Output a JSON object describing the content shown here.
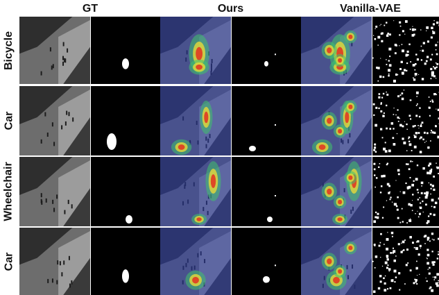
{
  "figure": {
    "column_headers": [
      "GT",
      "Ours",
      "Vanilla-VAE"
    ],
    "rows": [
      {
        "label": "Bicycle"
      },
      {
        "label": "Car"
      },
      {
        "label": "Wheelchair"
      },
      {
        "label": "Car"
      }
    ]
  },
  "colors": {
    "heatmap_overlay": "#2b3da8",
    "mask_background": "#000000",
    "mask_foreground": "#ffffff"
  }
}
